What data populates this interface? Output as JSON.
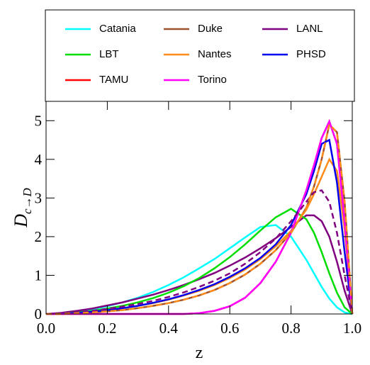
{
  "chart_data": {
    "type": "line",
    "xlabel": "z",
    "ylabel": "D",
    "ylabel_sub": "c→D",
    "x": [
      0,
      0.05,
      0.1,
      0.15,
      0.2,
      0.25,
      0.3,
      0.35,
      0.4,
      0.45,
      0.5,
      0.55,
      0.6,
      0.65,
      0.7,
      0.75,
      0.8,
      0.85,
      0.875,
      0.9,
      0.925,
      0.95,
      0.975,
      1
    ],
    "xlim": [
      0,
      1
    ],
    "xticks": [
      {
        "value": 0,
        "label": "0.0"
      },
      {
        "value": 0.2,
        "label": "0.2"
      },
      {
        "value": 0.4,
        "label": "0.4"
      },
      {
        "value": 0.6,
        "label": "0.6"
      },
      {
        "value": 0.8,
        "label": "0.8"
      },
      {
        "value": 1,
        "label": "1.0"
      }
    ],
    "ylim": [
      0,
      5.5
    ],
    "yticks": [
      0,
      1,
      2,
      3,
      4,
      5
    ],
    "legend": "top",
    "series": [
      {
        "name": "Catania",
        "color": "#00ffff",
        "dashed": false,
        "values": [
          0,
          0.02,
          0.06,
          0.12,
          0.2,
          0.3,
          0.42,
          0.57,
          0.75,
          0.95,
          1.18,
          1.42,
          1.7,
          1.98,
          2.25,
          2.3,
          2.0,
          1.4,
          1.05,
          0.7,
          0.4,
          0.17,
          0.04,
          0
        ]
      },
      {
        "name": "Duke",
        "color": "#a0522d",
        "dashed": false,
        "values": [
          0,
          0,
          0.02,
          0.04,
          0.07,
          0.1,
          0.15,
          0.21,
          0.28,
          0.37,
          0.48,
          0.62,
          0.8,
          1.02,
          1.3,
          1.65,
          2.1,
          2.75,
          3.3,
          4.0,
          4.9,
          4.7,
          2.9,
          0
        ]
      },
      {
        "name": "LANL",
        "color": "#800080",
        "dashed": false,
        "values": [
          0,
          0.03,
          0.08,
          0.14,
          0.22,
          0.3,
          0.4,
          0.5,
          0.62,
          0.75,
          0.9,
          1.06,
          1.25,
          1.46,
          1.7,
          1.96,
          2.25,
          2.55,
          2.55,
          2.4,
          2.0,
          1.35,
          0.6,
          0
        ]
      },
      {
        "name": "LBT",
        "color": "#00dd00",
        "dashed": false,
        "values": [
          0,
          0.01,
          0.04,
          0.08,
          0.14,
          0.21,
          0.3,
          0.41,
          0.55,
          0.72,
          0.93,
          1.18,
          1.47,
          1.8,
          2.16,
          2.5,
          2.72,
          2.45,
          2.1,
          1.6,
          1.05,
          0.55,
          0.17,
          0
        ]
      },
      {
        "name": "Nantes",
        "color": "#ff8c1a",
        "dashed": false,
        "values": [
          0,
          0.01,
          0.03,
          0.06,
          0.1,
          0.15,
          0.21,
          0.28,
          0.37,
          0.48,
          0.6,
          0.75,
          0.93,
          1.15,
          1.42,
          1.75,
          2.15,
          2.7,
          3.1,
          3.55,
          4.0,
          3.7,
          2.2,
          0
        ]
      },
      {
        "name": "PHSD",
        "color": "#0000ee",
        "dashed": false,
        "values": [
          0,
          0.01,
          0.03,
          0.06,
          0.1,
          0.15,
          0.21,
          0.29,
          0.38,
          0.49,
          0.62,
          0.77,
          0.96,
          1.18,
          1.45,
          1.8,
          2.3,
          3.1,
          3.7,
          4.4,
          4.5,
          3.4,
          1.6,
          0
        ]
      },
      {
        "name": "TAMU",
        "color": "#ff0000",
        "dashed": false,
        "values": [
          0,
          0,
          0,
          0,
          0,
          0,
          0,
          0,
          0,
          0,
          0.02,
          0.08,
          0.2,
          0.42,
          0.8,
          1.35,
          2.1,
          3.2,
          3.85,
          4.55,
          4.98,
          4.4,
          2.4,
          0
        ]
      },
      {
        "name": "Torino",
        "color": "#ff00ff",
        "dashed": false,
        "values": [
          0,
          0,
          0,
          0,
          0,
          0,
          0,
          0,
          0,
          0,
          0.02,
          0.08,
          0.2,
          0.42,
          0.8,
          1.35,
          2.1,
          3.2,
          3.85,
          4.55,
          4.98,
          4.4,
          2.4,
          0
        ]
      },
      {
        "name": "LANL",
        "color": "#800080",
        "dashed": true,
        "values": [
          0,
          0.01,
          0.04,
          0.08,
          0.13,
          0.19,
          0.26,
          0.34,
          0.44,
          0.56,
          0.7,
          0.86,
          1.05,
          1.3,
          1.6,
          1.95,
          2.4,
          2.9,
          3.15,
          3.2,
          2.9,
          2.1,
          1.0,
          0
        ]
      },
      {
        "name": "Nantes",
        "color": "#ff8c1a",
        "dashed": true,
        "values": [
          0,
          0,
          0.02,
          0.04,
          0.07,
          0.1,
          0.15,
          0.21,
          0.28,
          0.37,
          0.48,
          0.62,
          0.8,
          1.02,
          1.3,
          1.65,
          2.1,
          2.75,
          3.3,
          4.0,
          4.9,
          4.7,
          2.9,
          0
        ]
      }
    ]
  }
}
